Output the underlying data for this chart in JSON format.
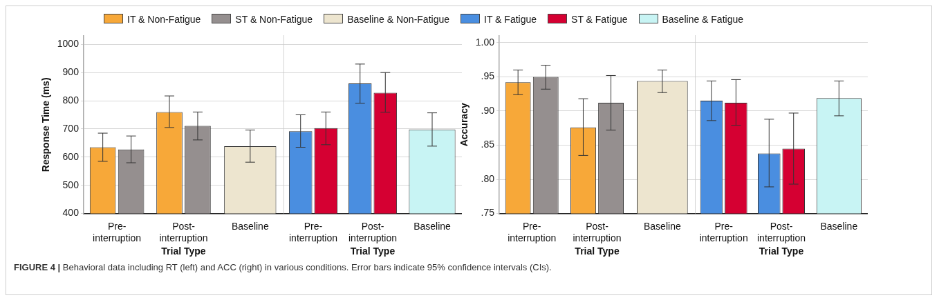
{
  "chart_data": [
    {
      "type": "bar",
      "ylabel": "Response Time (ms)",
      "xlabel": "Trial Type",
      "categories": [
        "Pre-interruption",
        "Post-interruption",
        "Baseline"
      ],
      "ylim": [
        400,
        1030
      ],
      "yticks": [
        400,
        500,
        600,
        700,
        800,
        900,
        1000
      ],
      "grid": "y",
      "legend": "top",
      "series": [
        {
          "name": "IT & Non-Fatigue",
          "color": "#f7a839",
          "values": [
            635,
            760,
            null
          ],
          "errors": [
            [
              585,
              685
            ],
            [
              705,
              817
            ],
            null
          ]
        },
        {
          "name": "ST & Non-Fatigue",
          "color": "#958f8f",
          "values": [
            627,
            711,
            null
          ],
          "errors": [
            [
              580,
              675
            ],
            [
              661,
              760
            ],
            null
          ]
        },
        {
          "name": "Baseline & Non-Fatigue",
          "color": "#ede5cf",
          "values": [
            null,
            null,
            639
          ],
          "errors": [
            null,
            null,
            [
              582,
              696
            ]
          ]
        }
      ],
      "annotations": [
        "FIGURE 4 | Behavioral data including RT (left) and ACC (right) in various conditions. Error bars indicate 95% confidence intervals (CIs)."
      ]
    },
    {
      "type": "bar",
      "xlabel": "Trial Type",
      "categories": [
        "Pre-interruption",
        "Post-interruption",
        "Baseline"
      ],
      "ylim": [
        400,
        1030
      ],
      "yticks": [
        400,
        500,
        600,
        700,
        800,
        900,
        1000
      ],
      "grid": "y",
      "legend": "top",
      "tick_labels": "x",
      "series": [
        {
          "name": "IT & Fatigue",
          "color": "#4a8ee0",
          "values": [
            692,
            861,
            null
          ],
          "errors": [
            [
              635,
              750
            ],
            [
              791,
              930
            ],
            null
          ]
        },
        {
          "name": "ST & Fatigue",
          "color": "#d50032",
          "values": [
            703,
            828,
            null
          ],
          "errors": [
            [
              644,
              760
            ],
            [
              759,
              900
            ],
            null
          ]
        },
        {
          "name": "Baseline & Fatigue",
          "color": "#c8f4f4",
          "values": [
            null,
            null,
            698
          ],
          "errors": [
            null,
            null,
            [
              639,
              757
            ]
          ]
        }
      ]
    },
    {
      "type": "bar",
      "ylabel": "Accuracy",
      "xlabel": "Trial Type",
      "categories": [
        "Pre-interruption",
        "Post-interruption",
        "Baseline"
      ],
      "ylim": [
        0.75,
        1.01
      ],
      "yticks": [
        {
          "value": 0.75,
          "label": ".75"
        },
        {
          "value": 0.8,
          "label": ".80"
        },
        {
          "value": 0.85,
          "label": ".85"
        },
        {
          "value": 0.9,
          "label": ".90"
        },
        {
          "value": 0.95,
          "label": ".95"
        },
        {
          "value": 1.0,
          "label": "1.00"
        }
      ],
      "grid": "y",
      "legend": "top",
      "series": [
        {
          "name": "IT & Non-Fatigue",
          "color": "#f7a839",
          "values": [
            0.942,
            0.876,
            null
          ],
          "errors": [
            [
              0.924,
              0.96
            ],
            [
              0.835,
              0.918
            ],
            null
          ]
        },
        {
          "name": "ST & Non-Fatigue",
          "color": "#958f8f",
          "values": [
            0.95,
            0.912,
            null
          ],
          "errors": [
            [
              0.932,
              0.967
            ],
            [
              0.872,
              0.952
            ],
            null
          ]
        },
        {
          "name": "Baseline & Non-Fatigue",
          "color": "#ede5cf",
          "values": [
            null,
            null,
            0.944
          ],
          "errors": [
            null,
            null,
            [
              0.927,
              0.96
            ]
          ]
        }
      ]
    },
    {
      "type": "bar",
      "xlabel": "Trial Type",
      "categories": [
        "Pre-interruption",
        "Post-interruption",
        "Baseline"
      ],
      "ylim": [
        0.75,
        1.01
      ],
      "yticks": [
        {
          "value": 0.75,
          "label": null
        },
        {
          "value": 0.8,
          "label": null
        },
        {
          "value": 0.85,
          "label": null
        },
        {
          "value": 0.9,
          "label": null
        },
        {
          "value": 0.95,
          "label": null
        },
        {
          "value": 1.0,
          "label": null
        }
      ],
      "grid": "y",
      "legend": "top",
      "tick_labels": "x",
      "series": [
        {
          "name": "IT & Fatigue",
          "color": "#4a8ee0",
          "values": [
            0.915,
            0.838,
            null
          ],
          "errors": [
            [
              0.886,
              0.944
            ],
            [
              0.789,
              0.888
            ],
            null
          ]
        },
        {
          "name": "ST & Fatigue",
          "color": "#d50032",
          "values": [
            0.912,
            0.845,
            null
          ],
          "errors": [
            [
              0.879,
              0.946
            ],
            [
              0.793,
              0.897
            ],
            null
          ]
        },
        {
          "name": "Baseline & Fatigue",
          "color": "#c8f4f4",
          "values": [
            null,
            null,
            0.919
          ],
          "errors": [
            null,
            null,
            [
              0.893,
              0.944
            ]
          ]
        }
      ]
    }
  ]
}
